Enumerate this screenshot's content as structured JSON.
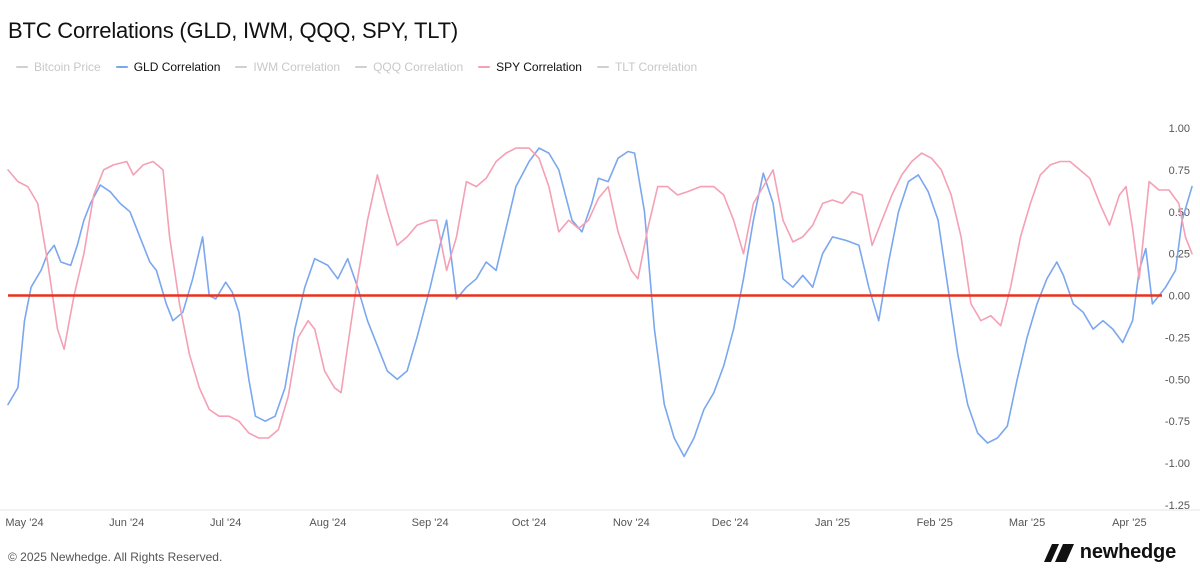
{
  "title": "BTC Correlations (GLD, IWM, QQQ, SPY, TLT)",
  "legend": [
    {
      "label": "Bitcoin Price",
      "color": "#d0d0d0",
      "active": false
    },
    {
      "label": "GLD Correlation",
      "color": "#7aa7ef",
      "active": true
    },
    {
      "label": "IWM Correlation",
      "color": "#d0d0d0",
      "active": false
    },
    {
      "label": "QQQ Correlation",
      "color": "#d0d0d0",
      "active": false
    },
    {
      "label": "SPY Correlation",
      "color": "#f4a0b5",
      "active": true
    },
    {
      "label": "TLT Correlation",
      "color": "#d0d0d0",
      "active": false
    }
  ],
  "footer": "© 2025 Newhedge. All Rights Reserved.",
  "brand": "newhedge",
  "chart_data": {
    "type": "line",
    "title": "BTC Correlations (GLD, IWM, QQQ, SPY, TLT)",
    "x_unit": "date",
    "x_range": [
      "2024-04-26",
      "2025-04-20"
    ],
    "ylim": [
      -1.25,
      1.0
    ],
    "y_ticks": [
      1.0,
      0.75,
      0.5,
      0.25,
      0.0,
      -0.25,
      -0.5,
      -0.75,
      -1.0,
      -1.25
    ],
    "y_tick_labels": [
      "1.00",
      "0.75",
      "0.50",
      "0.25",
      "0.00",
      "-0.25",
      "-0.50",
      "-0.75",
      "-1.00",
      "-1.25"
    ],
    "x_ticks": [
      {
        "date": "2024-05-01",
        "label": "May '24"
      },
      {
        "date": "2024-06-01",
        "label": "Jun '24"
      },
      {
        "date": "2024-07-01",
        "label": "Jul '24"
      },
      {
        "date": "2024-08-01",
        "label": "Aug '24"
      },
      {
        "date": "2024-09-01",
        "label": "Sep '24"
      },
      {
        "date": "2024-10-01",
        "label": "Oct '24"
      },
      {
        "date": "2024-11-01",
        "label": "Nov '24"
      },
      {
        "date": "2024-12-01",
        "label": "Dec '24"
      },
      {
        "date": "2025-01-01",
        "label": "Jan '25"
      },
      {
        "date": "2025-02-01",
        "label": "Feb '25"
      },
      {
        "date": "2025-03-01",
        "label": "Mar '25"
      },
      {
        "date": "2025-04-01",
        "label": "Apr '25"
      }
    ],
    "grid": false,
    "reference_line": {
      "y": 0.0,
      "color": "#e8321e"
    },
    "y_axis_side": "right",
    "legend_position": "top-left",
    "series": [
      {
        "name": "GLD Correlation",
        "color": "#7aa7ef",
        "points": [
          [
            "2024-04-26",
            -0.65
          ],
          [
            "2024-04-29",
            -0.55
          ],
          [
            "2024-05-01",
            -0.15
          ],
          [
            "2024-05-03",
            0.05
          ],
          [
            "2024-05-06",
            0.15
          ],
          [
            "2024-05-08",
            0.25
          ],
          [
            "2024-05-10",
            0.3
          ],
          [
            "2024-05-12",
            0.2
          ],
          [
            "2024-05-15",
            0.18
          ],
          [
            "2024-05-17",
            0.3
          ],
          [
            "2024-05-19",
            0.45
          ],
          [
            "2024-05-21",
            0.55
          ],
          [
            "2024-05-24",
            0.66
          ],
          [
            "2024-05-27",
            0.62
          ],
          [
            "2024-05-30",
            0.55
          ],
          [
            "2024-06-02",
            0.5
          ],
          [
            "2024-06-05",
            0.35
          ],
          [
            "2024-06-08",
            0.2
          ],
          [
            "2024-06-10",
            0.15
          ],
          [
            "2024-06-13",
            -0.05
          ],
          [
            "2024-06-15",
            -0.15
          ],
          [
            "2024-06-18",
            -0.1
          ],
          [
            "2024-06-21",
            0.1
          ],
          [
            "2024-06-24",
            0.35
          ],
          [
            "2024-06-26",
            0.0
          ],
          [
            "2024-06-28",
            -0.02
          ],
          [
            "2024-07-01",
            0.08
          ],
          [
            "2024-07-03",
            0.02
          ],
          [
            "2024-07-05",
            -0.1
          ],
          [
            "2024-07-08",
            -0.5
          ],
          [
            "2024-07-10",
            -0.72
          ],
          [
            "2024-07-13",
            -0.75
          ],
          [
            "2024-07-16",
            -0.72
          ],
          [
            "2024-07-19",
            -0.55
          ],
          [
            "2024-07-22",
            -0.2
          ],
          [
            "2024-07-25",
            0.05
          ],
          [
            "2024-07-28",
            0.22
          ],
          [
            "2024-08-01",
            0.18
          ],
          [
            "2024-08-04",
            0.1
          ],
          [
            "2024-08-07",
            0.22
          ],
          [
            "2024-08-10",
            0.05
          ],
          [
            "2024-08-13",
            -0.15
          ],
          [
            "2024-08-16",
            -0.3
          ],
          [
            "2024-08-19",
            -0.45
          ],
          [
            "2024-08-22",
            -0.5
          ],
          [
            "2024-08-25",
            -0.45
          ],
          [
            "2024-08-28",
            -0.25
          ],
          [
            "2024-09-01",
            0.05
          ],
          [
            "2024-09-04",
            0.3
          ],
          [
            "2024-09-06",
            0.45
          ],
          [
            "2024-09-09",
            -0.02
          ],
          [
            "2024-09-12",
            0.05
          ],
          [
            "2024-09-15",
            0.1
          ],
          [
            "2024-09-18",
            0.2
          ],
          [
            "2024-09-21",
            0.15
          ],
          [
            "2024-09-24",
            0.4
          ],
          [
            "2024-09-27",
            0.65
          ],
          [
            "2024-10-01",
            0.8
          ],
          [
            "2024-10-04",
            0.88
          ],
          [
            "2024-10-07",
            0.85
          ],
          [
            "2024-10-10",
            0.75
          ],
          [
            "2024-10-14",
            0.45
          ],
          [
            "2024-10-17",
            0.38
          ],
          [
            "2024-10-20",
            0.55
          ],
          [
            "2024-10-22",
            0.7
          ],
          [
            "2024-10-25",
            0.68
          ],
          [
            "2024-10-28",
            0.82
          ],
          [
            "2024-10-31",
            0.86
          ],
          [
            "2024-11-02",
            0.85
          ],
          [
            "2024-11-05",
            0.5
          ],
          [
            "2024-11-08",
            -0.2
          ],
          [
            "2024-11-11",
            -0.65
          ],
          [
            "2024-11-14",
            -0.85
          ],
          [
            "2024-11-17",
            -0.96
          ],
          [
            "2024-11-20",
            -0.85
          ],
          [
            "2024-11-23",
            -0.68
          ],
          [
            "2024-11-26",
            -0.58
          ],
          [
            "2024-11-29",
            -0.42
          ],
          [
            "2024-12-02",
            -0.2
          ],
          [
            "2024-12-05",
            0.1
          ],
          [
            "2024-12-08",
            0.45
          ],
          [
            "2024-12-11",
            0.73
          ],
          [
            "2024-12-14",
            0.55
          ],
          [
            "2024-12-17",
            0.1
          ],
          [
            "2024-12-20",
            0.05
          ],
          [
            "2024-12-23",
            0.12
          ],
          [
            "2024-12-26",
            0.05
          ],
          [
            "2024-12-29",
            0.25
          ],
          [
            "2025-01-01",
            0.35
          ],
          [
            "2025-01-05",
            0.33
          ],
          [
            "2025-01-09",
            0.3
          ],
          [
            "2025-01-12",
            0.05
          ],
          [
            "2025-01-15",
            -0.15
          ],
          [
            "2025-01-18",
            0.2
          ],
          [
            "2025-01-21",
            0.5
          ],
          [
            "2025-01-24",
            0.68
          ],
          [
            "2025-01-27",
            0.72
          ],
          [
            "2025-01-30",
            0.62
          ],
          [
            "2025-02-02",
            0.45
          ],
          [
            "2025-02-05",
            0.05
          ],
          [
            "2025-02-08",
            -0.35
          ],
          [
            "2025-02-11",
            -0.65
          ],
          [
            "2025-02-14",
            -0.82
          ],
          [
            "2025-02-17",
            -0.88
          ],
          [
            "2025-02-20",
            -0.85
          ],
          [
            "2025-02-23",
            -0.78
          ],
          [
            "2025-02-26",
            -0.5
          ],
          [
            "2025-03-01",
            -0.25
          ],
          [
            "2025-03-04",
            -0.05
          ],
          [
            "2025-03-07",
            0.1
          ],
          [
            "2025-03-10",
            0.2
          ],
          [
            "2025-03-12",
            0.12
          ],
          [
            "2025-03-15",
            -0.05
          ],
          [
            "2025-03-18",
            -0.1
          ],
          [
            "2025-03-21",
            -0.2
          ],
          [
            "2025-03-24",
            -0.15
          ],
          [
            "2025-03-27",
            -0.2
          ],
          [
            "2025-03-30",
            -0.28
          ],
          [
            "2025-04-02",
            -0.15
          ],
          [
            "2025-04-04",
            0.15
          ],
          [
            "2025-04-06",
            0.28
          ],
          [
            "2025-04-08",
            -0.05
          ],
          [
            "2025-04-10",
            0.0
          ],
          [
            "2025-04-12",
            0.05
          ],
          [
            "2025-04-15",
            0.15
          ],
          [
            "2025-04-17",
            0.45
          ],
          [
            "2025-04-20",
            0.65
          ]
        ]
      },
      {
        "name": "SPY Correlation",
        "color": "#f4a0b5",
        "points": [
          [
            "2024-04-26",
            0.75
          ],
          [
            "2024-04-29",
            0.68
          ],
          [
            "2024-05-02",
            0.65
          ],
          [
            "2024-05-05",
            0.55
          ],
          [
            "2024-05-08",
            0.2
          ],
          [
            "2024-05-11",
            -0.2
          ],
          [
            "2024-05-13",
            -0.32
          ],
          [
            "2024-05-16",
            0.0
          ],
          [
            "2024-05-19",
            0.25
          ],
          [
            "2024-05-22",
            0.6
          ],
          [
            "2024-05-25",
            0.75
          ],
          [
            "2024-05-28",
            0.78
          ],
          [
            "2024-06-01",
            0.8
          ],
          [
            "2024-06-03",
            0.72
          ],
          [
            "2024-06-06",
            0.78
          ],
          [
            "2024-06-09",
            0.8
          ],
          [
            "2024-06-12",
            0.75
          ],
          [
            "2024-06-14",
            0.35
          ],
          [
            "2024-06-17",
            -0.05
          ],
          [
            "2024-06-20",
            -0.35
          ],
          [
            "2024-06-23",
            -0.55
          ],
          [
            "2024-06-26",
            -0.68
          ],
          [
            "2024-06-29",
            -0.72
          ],
          [
            "2024-07-02",
            -0.72
          ],
          [
            "2024-07-05",
            -0.75
          ],
          [
            "2024-07-08",
            -0.82
          ],
          [
            "2024-07-11",
            -0.85
          ],
          [
            "2024-07-14",
            -0.85
          ],
          [
            "2024-07-17",
            -0.8
          ],
          [
            "2024-07-20",
            -0.6
          ],
          [
            "2024-07-23",
            -0.25
          ],
          [
            "2024-07-26",
            -0.15
          ],
          [
            "2024-07-28",
            -0.2
          ],
          [
            "2024-07-31",
            -0.45
          ],
          [
            "2024-08-03",
            -0.55
          ],
          [
            "2024-08-05",
            -0.58
          ],
          [
            "2024-08-07",
            -0.3
          ],
          [
            "2024-08-10",
            0.1
          ],
          [
            "2024-08-13",
            0.45
          ],
          [
            "2024-08-16",
            0.72
          ],
          [
            "2024-08-19",
            0.5
          ],
          [
            "2024-08-22",
            0.3
          ],
          [
            "2024-08-25",
            0.35
          ],
          [
            "2024-08-28",
            0.42
          ],
          [
            "2024-09-01",
            0.45
          ],
          [
            "2024-09-03",
            0.45
          ],
          [
            "2024-09-06",
            0.15
          ],
          [
            "2024-09-09",
            0.35
          ],
          [
            "2024-09-12",
            0.68
          ],
          [
            "2024-09-15",
            0.65
          ],
          [
            "2024-09-18",
            0.7
          ],
          [
            "2024-09-21",
            0.8
          ],
          [
            "2024-09-24",
            0.85
          ],
          [
            "2024-09-27",
            0.88
          ],
          [
            "2024-10-01",
            0.88
          ],
          [
            "2024-10-04",
            0.82
          ],
          [
            "2024-10-07",
            0.65
          ],
          [
            "2024-10-10",
            0.38
          ],
          [
            "2024-10-13",
            0.45
          ],
          [
            "2024-10-16",
            0.4
          ],
          [
            "2024-10-19",
            0.45
          ],
          [
            "2024-10-22",
            0.58
          ],
          [
            "2024-10-25",
            0.65
          ],
          [
            "2024-10-28",
            0.38
          ],
          [
            "2024-11-01",
            0.15
          ],
          [
            "2024-11-03",
            0.1
          ],
          [
            "2024-11-06",
            0.4
          ],
          [
            "2024-11-09",
            0.65
          ],
          [
            "2024-11-12",
            0.65
          ],
          [
            "2024-11-15",
            0.6
          ],
          [
            "2024-11-18",
            0.62
          ],
          [
            "2024-11-22",
            0.65
          ],
          [
            "2024-11-26",
            0.65
          ],
          [
            "2024-11-29",
            0.6
          ],
          [
            "2024-12-02",
            0.45
          ],
          [
            "2024-12-05",
            0.25
          ],
          [
            "2024-12-08",
            0.55
          ],
          [
            "2024-12-11",
            0.65
          ],
          [
            "2024-12-14",
            0.75
          ],
          [
            "2024-12-17",
            0.45
          ],
          [
            "2024-12-20",
            0.32
          ],
          [
            "2024-12-23",
            0.35
          ],
          [
            "2024-12-26",
            0.42
          ],
          [
            "2024-12-29",
            0.55
          ],
          [
            "2025-01-01",
            0.57
          ],
          [
            "2025-01-04",
            0.55
          ],
          [
            "2025-01-07",
            0.62
          ],
          [
            "2025-01-10",
            0.6
          ],
          [
            "2025-01-13",
            0.3
          ],
          [
            "2025-01-16",
            0.45
          ],
          [
            "2025-01-19",
            0.6
          ],
          [
            "2025-01-22",
            0.72
          ],
          [
            "2025-01-25",
            0.8
          ],
          [
            "2025-01-28",
            0.85
          ],
          [
            "2025-01-31",
            0.82
          ],
          [
            "2025-02-03",
            0.75
          ],
          [
            "2025-02-06",
            0.6
          ],
          [
            "2025-02-09",
            0.35
          ],
          [
            "2025-02-12",
            -0.05
          ],
          [
            "2025-02-15",
            -0.15
          ],
          [
            "2025-02-18",
            -0.12
          ],
          [
            "2025-02-21",
            -0.18
          ],
          [
            "2025-02-24",
            0.05
          ],
          [
            "2025-02-27",
            0.35
          ],
          [
            "2025-03-02",
            0.55
          ],
          [
            "2025-03-05",
            0.72
          ],
          [
            "2025-03-08",
            0.78
          ],
          [
            "2025-03-11",
            0.8
          ],
          [
            "2025-03-14",
            0.8
          ],
          [
            "2025-03-17",
            0.75
          ],
          [
            "2025-03-20",
            0.7
          ],
          [
            "2025-03-23",
            0.55
          ],
          [
            "2025-03-26",
            0.42
          ],
          [
            "2025-03-29",
            0.6
          ],
          [
            "2025-03-31",
            0.65
          ],
          [
            "2025-04-02",
            0.4
          ],
          [
            "2025-04-04",
            0.1
          ],
          [
            "2025-04-07",
            0.68
          ],
          [
            "2025-04-10",
            0.63
          ],
          [
            "2025-04-13",
            0.63
          ],
          [
            "2025-04-16",
            0.55
          ],
          [
            "2025-04-18",
            0.35
          ],
          [
            "2025-04-20",
            0.25
          ]
        ]
      }
    ]
  }
}
